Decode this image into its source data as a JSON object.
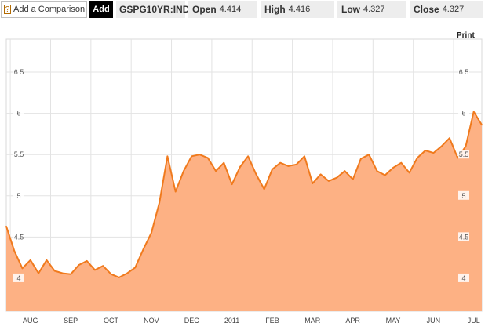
{
  "toolbar": {
    "help_glyph": "?",
    "compare_label": "Add a Comparison",
    "add_label": "Add",
    "ticker": "GSPG10YR:IND",
    "open": {
      "label": "Open",
      "value": "4.414"
    },
    "high": {
      "label": "High",
      "value": "4.416"
    },
    "low": {
      "label": "Low",
      "value": "4.327"
    },
    "close": {
      "label": "Close",
      "value": "4.327"
    }
  },
  "print_label": "Print",
  "colors": {
    "line": "#f07a1d",
    "fill": "#fdb184",
    "grid": "#e3e3e3"
  },
  "chart_data": {
    "type": "area",
    "title": "",
    "xlabel": "",
    "ylabel": "",
    "ylim": [
      3.6,
      6.9
    ],
    "y_ticks": [
      "6.5",
      "6",
      "5.5",
      "5",
      "4.5",
      "4"
    ],
    "x_ticks": [
      "AUG",
      "SEP",
      "OCT",
      "NOV",
      "DEC",
      "2011",
      "FEB",
      "MAR",
      "APR",
      "MAY",
      "JUN",
      "JUL"
    ],
    "x": [
      0.0,
      0.2,
      0.4,
      0.6,
      0.8,
      1.0,
      1.2,
      1.4,
      1.6,
      1.8,
      2.0,
      2.2,
      2.4,
      2.6,
      2.8,
      3.0,
      3.2,
      3.4,
      3.6,
      3.8,
      4.0,
      4.2,
      4.4,
      4.6,
      4.8,
      5.0,
      5.2,
      5.4,
      5.6,
      5.8,
      6.0,
      6.2,
      6.4,
      6.6,
      6.8,
      7.0,
      7.2,
      7.4,
      7.6,
      7.8,
      8.0,
      8.2,
      8.4,
      8.6,
      8.8,
      9.0,
      9.2,
      9.4,
      9.6,
      9.8,
      10.0,
      10.2,
      10.4,
      10.6,
      10.8,
      11.0,
      11.2,
      11.4,
      11.6,
      11.8
    ],
    "series": [
      {
        "values": [
          4.63,
          4.33,
          4.12,
          4.22,
          4.06,
          4.22,
          4.09,
          4.06,
          4.05,
          4.16,
          4.21,
          4.1,
          4.15,
          4.05,
          4.01,
          4.06,
          4.13,
          4.35,
          4.55,
          4.92,
          5.48,
          5.05,
          5.3,
          5.48,
          5.5,
          5.46,
          5.3,
          5.4,
          5.14,
          5.35,
          5.48,
          5.26,
          5.08,
          5.32,
          5.4,
          5.36,
          5.38,
          5.48,
          5.15,
          5.26,
          5.18,
          5.22,
          5.3,
          5.2,
          5.45,
          5.5,
          5.3,
          5.25,
          5.34,
          5.4,
          5.28,
          5.46,
          5.55,
          5.52,
          5.6,
          5.7,
          5.46,
          5.6,
          6.02,
          5.86
        ]
      }
    ],
    "grid": true
  }
}
